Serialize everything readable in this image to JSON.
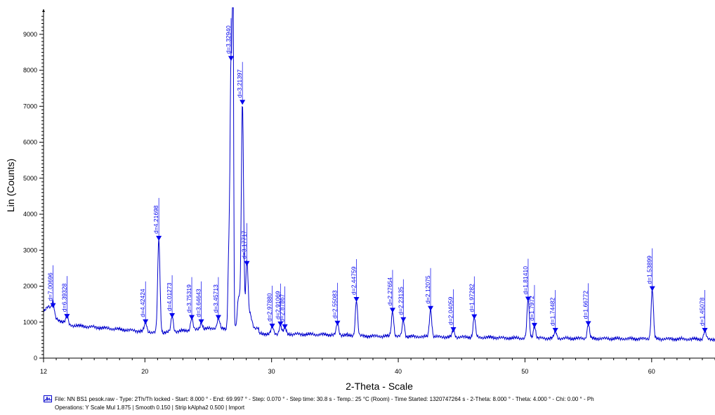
{
  "chart_data": {
    "type": "line",
    "xlabel": "2-Theta - Scale",
    "ylabel": "Lin (Counts)",
    "xlim": [
      12,
      65
    ],
    "ylim": [
      0,
      9700
    ],
    "x_ticks": [
      12,
      20,
      30,
      40,
      50,
      60
    ],
    "y_ticks": [
      0,
      1000,
      2000,
      3000,
      4000,
      5000,
      6000,
      7000,
      8000,
      9000
    ],
    "grid": false,
    "line_color": "#0000cc",
    "peaks": [
      {
        "x": 12.75,
        "y": 1450,
        "label": "d=7.00696"
      },
      {
        "x": 13.85,
        "y": 1150,
        "label": "d=6.39328"
      },
      {
        "x": 20.05,
        "y": 1000,
        "label": "d=4.42424"
      },
      {
        "x": 21.1,
        "y": 3320,
        "label": "d=4.21698"
      },
      {
        "x": 22.15,
        "y": 1170,
        "label": "d=4.01273"
      },
      {
        "x": 23.7,
        "y": 1120,
        "label": "d=3.75319"
      },
      {
        "x": 24.45,
        "y": 1000,
        "label": "d=3.64643"
      },
      {
        "x": 25.8,
        "y": 1120,
        "label": "d=3.45713"
      },
      {
        "x": 26.8,
        "y": 8320,
        "label": "d=3.32940"
      },
      {
        "x": 27.7,
        "y": 7100,
        "label": "d=3.21397"
      },
      {
        "x": 28.05,
        "y": 2620,
        "label": "d=3.17717"
      },
      {
        "x": 30.05,
        "y": 880,
        "label": "d=2.97880"
      },
      {
        "x": 30.7,
        "y": 940,
        "label": "d=2.91069"
      },
      {
        "x": 31.05,
        "y": 860,
        "label": "d=2.87867"
      },
      {
        "x": 35.2,
        "y": 960,
        "label": "d=2.55083"
      },
      {
        "x": 36.7,
        "y": 1620,
        "label": "d=2.44759"
      },
      {
        "x": 39.55,
        "y": 1320,
        "label": "d=2.27654"
      },
      {
        "x": 40.4,
        "y": 1060,
        "label": "d=2.23135"
      },
      {
        "x": 42.55,
        "y": 1370,
        "label": "d=2.12075"
      },
      {
        "x": 44.35,
        "y": 780,
        "label": "d=2.04059"
      },
      {
        "x": 46.0,
        "y": 1140,
        "label": "d=1.97282"
      },
      {
        "x": 50.25,
        "y": 1630,
        "label": "d=1.81410"
      },
      {
        "x": 50.75,
        "y": 900,
        "label": "d=1.7972"
      },
      {
        "x": 52.4,
        "y": 760,
        "label": "d=1.74482"
      },
      {
        "x": 55.0,
        "y": 950,
        "label": "d=1.66772"
      },
      {
        "x": 60.05,
        "y": 1920,
        "label": "d=1.53899"
      },
      {
        "x": 64.2,
        "y": 760,
        "label": "d=1.45078"
      }
    ]
  },
  "footer": {
    "line1": "File: NN BS1 pesok.raw - Type: 2Th/Th locked - Start: 8.000 ° - End: 69.997 ° - Step: 0.070 ° - Step time: 30.8 s - Temp.: 25 °C (Room) - Time Started: 1320747264 s - 2-Theta: 8.000 ° - Theta: 4.000 ° - Chi: 0.00 ° - Ph",
    "line2": "Operations: Y Scale Mul  1.875 | Smooth 0.150 | Strip kAlpha2 0.500 | Import"
  }
}
